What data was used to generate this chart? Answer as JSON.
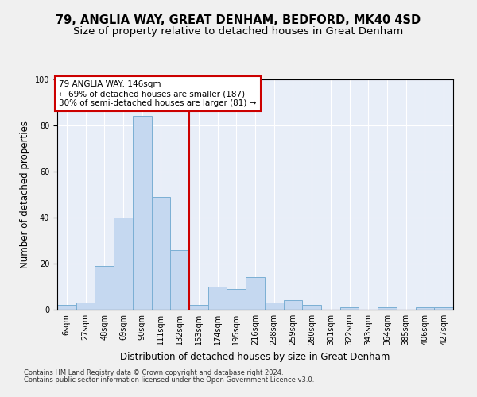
{
  "title": "79, ANGLIA WAY, GREAT DENHAM, BEDFORD, MK40 4SD",
  "subtitle": "Size of property relative to detached houses in Great Denham",
  "xlabel": "Distribution of detached houses by size in Great Denham",
  "ylabel": "Number of detached properties",
  "categories": [
    "6sqm",
    "27sqm",
    "48sqm",
    "69sqm",
    "90sqm",
    "111sqm",
    "132sqm",
    "153sqm",
    "174sqm",
    "195sqm",
    "216sqm",
    "238sqm",
    "259sqm",
    "280sqm",
    "301sqm",
    "322sqm",
    "343sqm",
    "364sqm",
    "385sqm",
    "406sqm",
    "427sqm"
  ],
  "values": [
    2,
    3,
    19,
    40,
    84,
    49,
    26,
    2,
    10,
    9,
    14,
    3,
    4,
    2,
    0,
    1,
    0,
    1,
    0,
    1,
    1
  ],
  "bar_color": "#c5d8f0",
  "bar_edge_color": "#7bafd4",
  "vline_color": "#cc0000",
  "annotation_line1": "79 ANGLIA WAY: 146sqm",
  "annotation_line2": "← 69% of detached houses are smaller (187)",
  "annotation_line3": "30% of semi-detached houses are larger (81) →",
  "annotation_box_color": "#ffffff",
  "annotation_box_edge_color": "#cc0000",
  "ylim": [
    0,
    100
  ],
  "yticks": [
    0,
    20,
    40,
    60,
    80,
    100
  ],
  "fig_bg_color": "#f0f0f0",
  "plot_bg_color": "#e8eef8",
  "footer_line1": "Contains HM Land Registry data © Crown copyright and database right 2024.",
  "footer_line2": "Contains public sector information licensed under the Open Government Licence v3.0.",
  "title_fontsize": 10.5,
  "subtitle_fontsize": 9.5,
  "axis_label_fontsize": 8.5,
  "tick_fontsize": 7,
  "footer_fontsize": 6
}
